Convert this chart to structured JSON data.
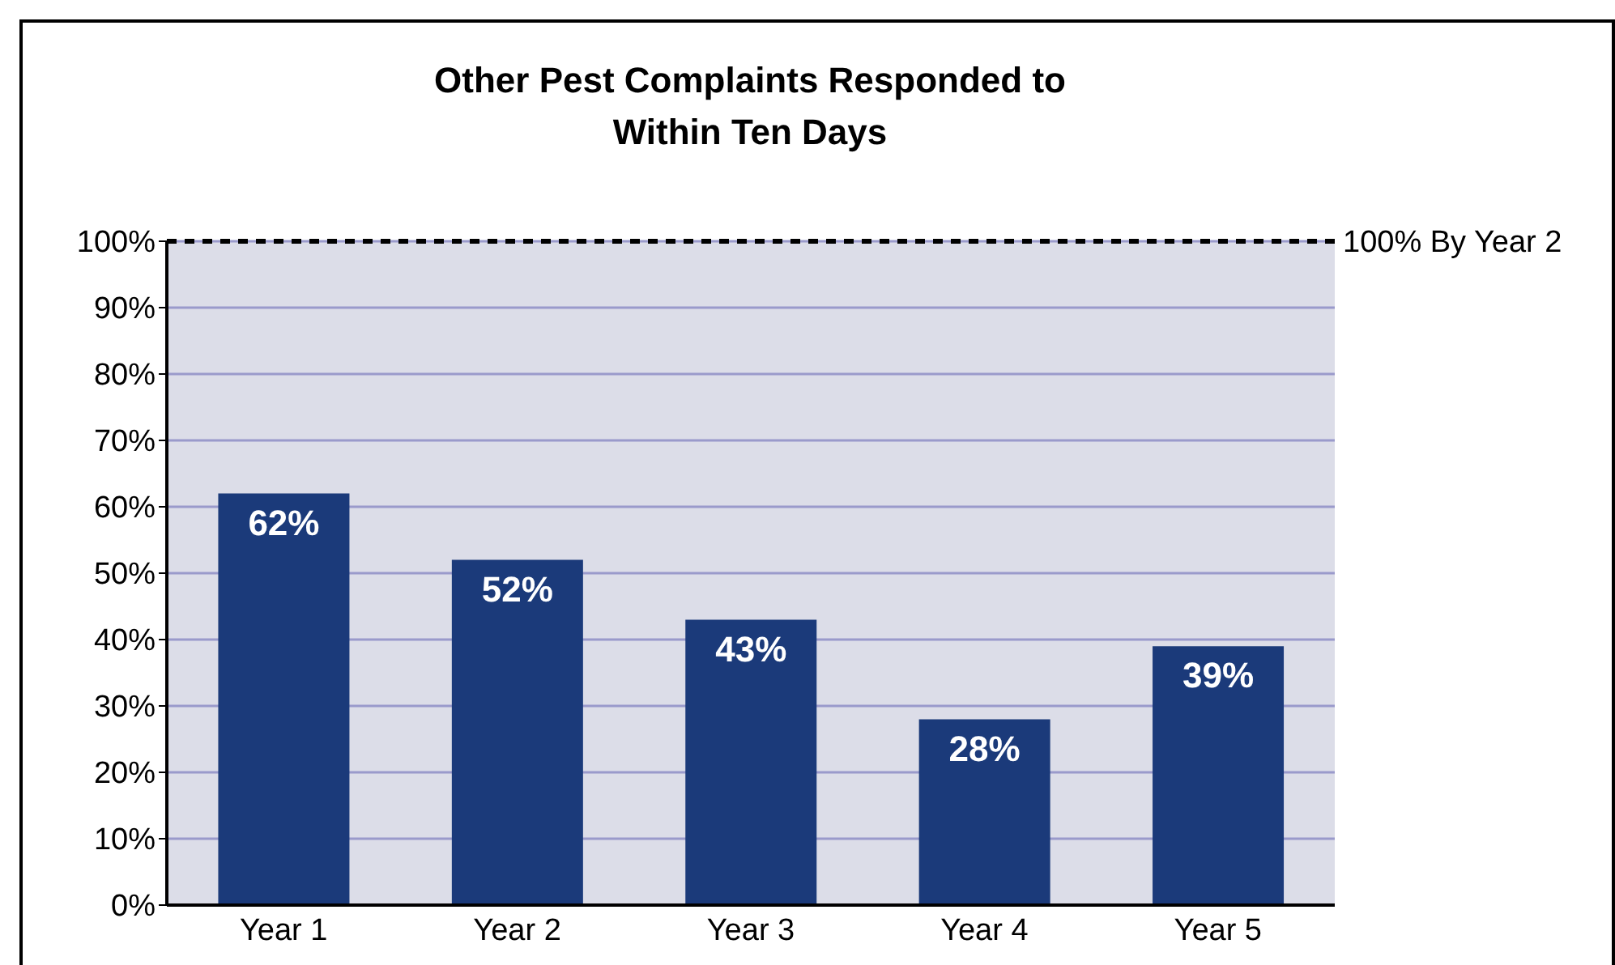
{
  "chart_data": {
    "type": "bar",
    "title": "Other Pest Complaints Responded to Within Ten Days",
    "categories": [
      "Year 1",
      "Year 2",
      "Year 3",
      "Year 4",
      "Year 5"
    ],
    "values": [
      62,
      52,
      43,
      28,
      39
    ],
    "color": "#1b3a7a",
    "value_labels": [
      "62%",
      "52%",
      "43%",
      "28%",
      "39%"
    ],
    "ylim": [
      0,
      100
    ],
    "yticks": [
      {
        "value": 0,
        "label": "0%"
      },
      {
        "value": 10,
        "label": "10%"
      },
      {
        "value": 20,
        "label": "20%"
      },
      {
        "value": 30,
        "label": "30%"
      },
      {
        "value": 40,
        "label": "40%"
      },
      {
        "value": 50,
        "label": "50%"
      },
      {
        "value": 60,
        "label": "60%"
      },
      {
        "value": 70,
        "label": "70%"
      },
      {
        "value": 80,
        "label": "80%"
      },
      {
        "value": 90,
        "label": "90%"
      },
      {
        "value": 100,
        "label": "100%"
      }
    ],
    "grid": "y",
    "ref_lines": [
      {
        "axis": "y",
        "value": 100,
        "label": "100% By Year 2",
        "color": "#000000",
        "line_style": "dashed"
      }
    ]
  }
}
